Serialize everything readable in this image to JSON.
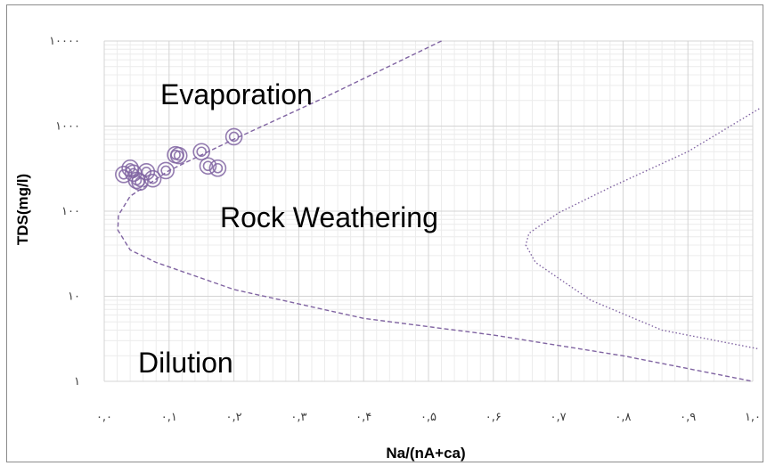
{
  "chart_data": {
    "type": "scatter",
    "xlabel": "Na/(nA+ca)",
    "ylabel": "TDS(mg/l)",
    "x_scale": "linear",
    "y_scale": "log",
    "xlim": [
      0.0,
      1.0
    ],
    "ylim": [
      1,
      10000
    ],
    "grid": true,
    "x_tick_labels": [
      "۰,۰",
      "۰,۱",
      "۰,۲",
      "۰,۳",
      "۰,۴",
      "۰,۵",
      "۰,۶",
      "۰,۷",
      "۰,۸",
      "۰,۹",
      "۱,۰"
    ],
    "y_tick_values": [
      1,
      10,
      100,
      1000,
      10000
    ],
    "y_tick_labels": [
      "۱",
      "۱۰",
      "۱۰۰",
      "۱۰۰۰",
      "۱۰۰۰۰"
    ],
    "region_labels": [
      "Evaporation",
      "Rock Weathering",
      "Dilution"
    ],
    "series": [
      {
        "marker": "double-circle",
        "color": "#8064a2",
        "points": [
          {
            "x": 0.03,
            "y": 270
          },
          {
            "x": 0.04,
            "y": 320
          },
          {
            "x": 0.045,
            "y": 280
          },
          {
            "x": 0.05,
            "y": 230
          },
          {
            "x": 0.055,
            "y": 220
          },
          {
            "x": 0.065,
            "y": 290
          },
          {
            "x": 0.075,
            "y": 240
          },
          {
            "x": 0.095,
            "y": 300
          },
          {
            "x": 0.11,
            "y": 460
          },
          {
            "x": 0.115,
            "y": 450
          },
          {
            "x": 0.15,
            "y": 500
          },
          {
            "x": 0.16,
            "y": 340
          },
          {
            "x": 0.175,
            "y": 320
          },
          {
            "x": 0.2,
            "y": 750
          }
        ]
      }
    ],
    "curves": [
      {
        "style": "dashed",
        "color": "#8064a2",
        "points": [
          {
            "x": 0.52,
            "y": 10000
          },
          {
            "x": 0.33,
            "y": 2000
          },
          {
            "x": 0.2,
            "y": 700
          },
          {
            "x": 0.1,
            "y": 300
          },
          {
            "x": 0.04,
            "y": 150
          },
          {
            "x": 0.022,
            "y": 90
          },
          {
            "x": 0.021,
            "y": 60
          },
          {
            "x": 0.04,
            "y": 35
          },
          {
            "x": 0.08,
            "y": 25
          },
          {
            "x": 0.2,
            "y": 12
          },
          {
            "x": 0.4,
            "y": 5.5
          },
          {
            "x": 0.6,
            "y": 3.5
          },
          {
            "x": 0.8,
            "y": 2
          },
          {
            "x": 1.0,
            "y": 1
          }
        ]
      },
      {
        "style": "dotted",
        "color": "#8064a2",
        "points": [
          {
            "x": 1.01,
            "y": 1600
          },
          {
            "x": 0.9,
            "y": 500
          },
          {
            "x": 0.78,
            "y": 190
          },
          {
            "x": 0.7,
            "y": 95
          },
          {
            "x": 0.655,
            "y": 55
          },
          {
            "x": 0.65,
            "y": 40
          },
          {
            "x": 0.665,
            "y": 25
          },
          {
            "x": 0.75,
            "y": 9
          },
          {
            "x": 0.86,
            "y": 4
          },
          {
            "x": 1.01,
            "y": 2.4
          }
        ]
      }
    ]
  }
}
